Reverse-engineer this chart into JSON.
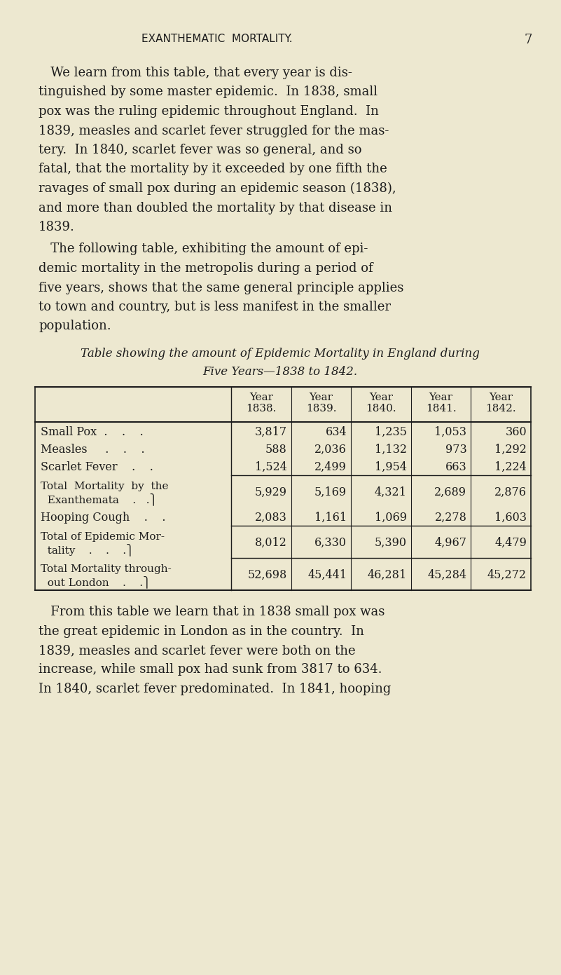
{
  "background_color": "#ede8d0",
  "page_header": "EXANTHEMATIC  MORTALITY.",
  "page_number": "7",
  "body_text_1": [
    "   We learn from this table, that every year is dis-",
    "tinguished by some master epidemic.  In 1838, small",
    "pox was the ruling epidemic throughout England.  In",
    "1839, measles and scarlet fever struggled for the mas-",
    "tery.  In 1840, scarlet fever was so general, and so",
    "fatal, that the mortality by it exceeded by one fifth the",
    "ravages of small pox during an epidemic season (1838),",
    "and more than doubled the mortality by that disease in",
    "1839."
  ],
  "body_text_2": [
    "   The following table, exhibiting the amount of epi-",
    "demic mortality in the metropolis during a period of",
    "five years, shows that the same general principle applies",
    "to town and country, but is less manifest in the smaller",
    "population."
  ],
  "table_caption_line1": "Table showing the amount of Epidemic Mortality in England during",
  "table_caption_line2": "Five Years—1838 to 1842.",
  "col_headers": [
    "Year\n1838.",
    "Year\n1839.",
    "Year\n1840.",
    "Year\n1841.",
    "Year\n1842."
  ],
  "row_label_line1": [
    "Small Pox  .    .    .",
    "Measles     .    .    .",
    "Scarlet Fever    .    .",
    "Total  Mortality  by  the",
    "Hooping Cough    .    .",
    "Total of Epidemic Mor-",
    "Total Mortality through-"
  ],
  "row_label_line2": [
    "",
    "",
    "",
    "  Exanthemata    .   .⎫",
    "",
    "  tality    .    .    .⎫",
    "  out London    .    .⎫"
  ],
  "data": [
    [
      3817,
      634,
      1235,
      1053,
      360
    ],
    [
      588,
      2036,
      1132,
      973,
      1292
    ],
    [
      1524,
      2499,
      1954,
      663,
      1224
    ],
    [
      5929,
      5169,
      4321,
      2689,
      2876
    ],
    [
      2083,
      1161,
      1069,
      2278,
      1603
    ],
    [
      8012,
      6330,
      5390,
      4967,
      4479
    ],
    [
      52698,
      45441,
      46281,
      45284,
      45272
    ]
  ],
  "body_text_3": [
    "   From this table we learn that in 1838 small pox was",
    "the great epidemic in London as in the country.  In",
    "1839, measles and scarlet fever were both on the",
    "increase, while small pox had sunk from 3817 to 634.",
    "In 1840, scarlet fever predominated.  In 1841, hooping"
  ],
  "text_color": "#1c1c1c",
  "line_color": "#1c1c1c"
}
